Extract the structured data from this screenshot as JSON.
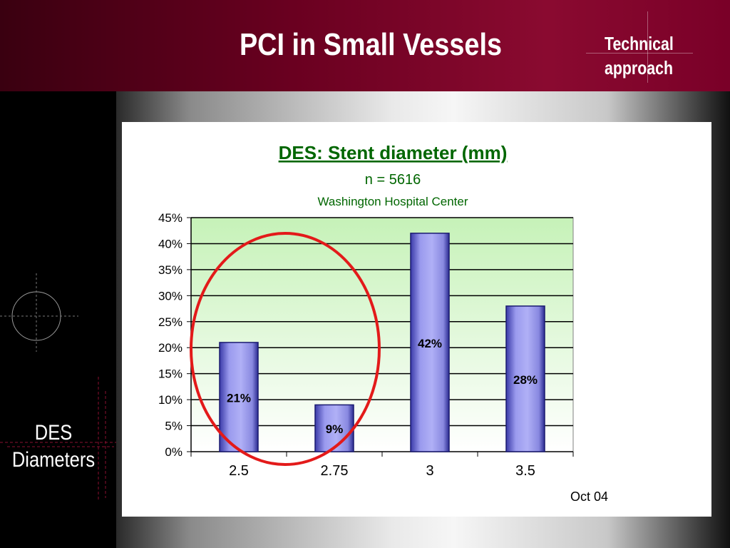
{
  "slide": {
    "title": "PCI in Small Vessels",
    "section_line1": "Technical",
    "section_line2": "approach",
    "side_label_line1": "DES",
    "side_label_line2": "Diameters"
  },
  "colors": {
    "header": "#7a0028",
    "plot_bg": "#ccf5c0",
    "bar": "#8a8ae6",
    "title_green": "#006600",
    "annotation_circle": "#e31a1a"
  },
  "chart_data": {
    "type": "bar",
    "title": "DES: Stent diameter (mm)",
    "subtitle": "n = 5616",
    "subtitle2": "Washington Hospital Center",
    "categories": [
      "2.5",
      "2.75",
      "3",
      "3.5"
    ],
    "values": [
      21,
      9,
      42,
      28
    ],
    "data_labels": [
      "21%",
      "9%",
      "42%",
      "28%"
    ],
    "ylim": [
      0,
      45
    ],
    "yticks": [
      "0%",
      "5%",
      "10%",
      "15%",
      "20%",
      "25%",
      "30%",
      "35%",
      "40%",
      "45%"
    ],
    "xlabel": "",
    "ylabel": "",
    "grid": true,
    "footnote": "Oct 04",
    "annotation": "red circle around 2.5 and 2.75 bars"
  }
}
